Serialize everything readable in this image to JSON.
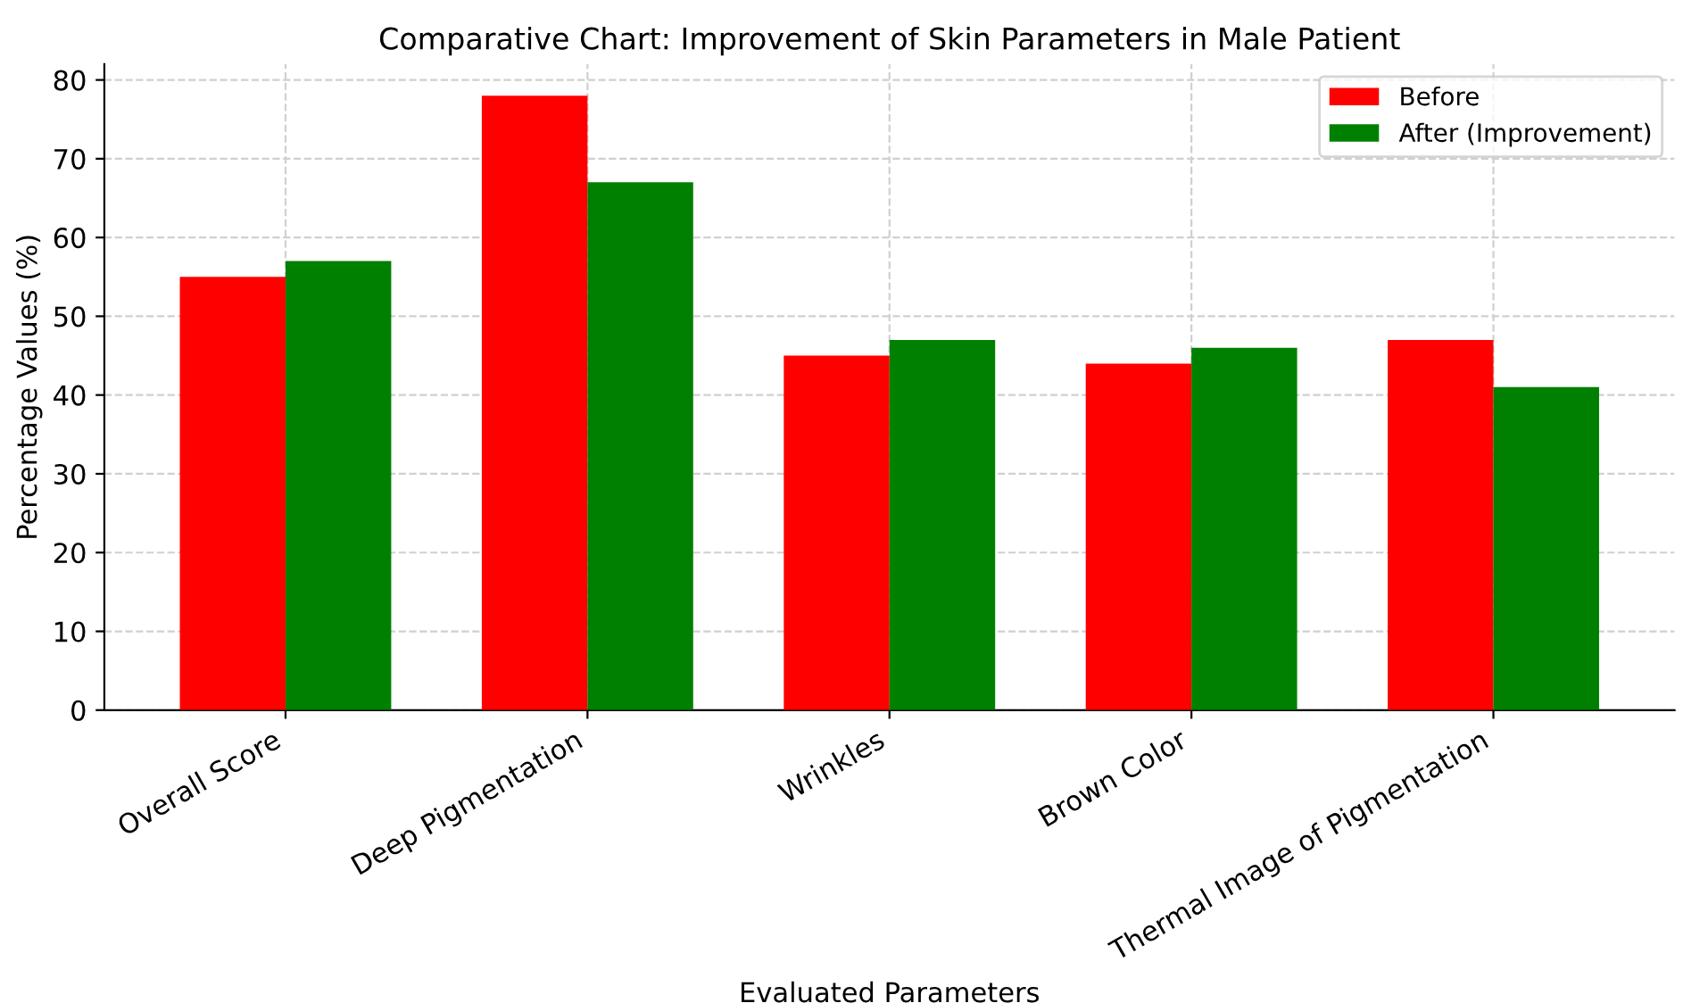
{
  "chart_data": {
    "type": "bar",
    "title": "Comparative Chart: Improvement of Skin Parameters in Male Patient",
    "xlabel": "Evaluated Parameters",
    "ylabel": "Percentage Values (%)",
    "categories": [
      "Overall Score",
      "Deep Pigmentation",
      "Wrinkles",
      "Brown Color",
      "Thermal Image of Pigmentation"
    ],
    "series": [
      {
        "name": "Before",
        "color": "#ff0000",
        "values": [
          55,
          78,
          45,
          44,
          47
        ]
      },
      {
        "name": "After (Improvement)",
        "color": "#008000",
        "values": [
          57,
          67,
          47,
          46,
          41
        ]
      }
    ],
    "ylim": [
      0,
      82
    ],
    "yticks": [
      0,
      10,
      20,
      30,
      40,
      50,
      60,
      70,
      80
    ],
    "grid": true,
    "legend": "top right"
  }
}
